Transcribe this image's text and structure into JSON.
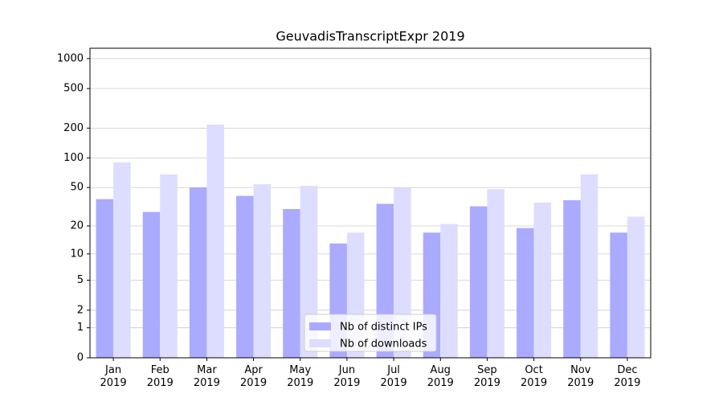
{
  "chart_data": {
    "type": "bar",
    "title": "GeuvadisTranscriptExpr 2019",
    "categories": [
      "Jan 2019",
      "Feb 2019",
      "Mar 2019",
      "Apr 2019",
      "May 2019",
      "Jun 2019",
      "Jul 2019",
      "Aug 2019",
      "Sep 2019",
      "Oct 2019",
      "Nov 2019",
      "Dec 2019"
    ],
    "series": [
      {
        "name": "Nb of distinct IPs",
        "color": "#aaaaff",
        "values": [
          38,
          28,
          50,
          41,
          30,
          13,
          34,
          17,
          32,
          19,
          37,
          17
        ]
      },
      {
        "name": "Nb of downloads",
        "color": "#ddddff",
        "values": [
          90,
          68,
          217,
          54,
          52,
          17,
          50,
          21,
          48,
          35,
          68,
          25
        ]
      }
    ],
    "yscale": "symlog",
    "ylim": [
      0,
      1270
    ],
    "yticks": [
      0,
      1,
      2,
      5,
      10,
      20,
      50,
      100,
      200,
      500,
      1000
    ],
    "grid": true,
    "legend": "lower center"
  }
}
